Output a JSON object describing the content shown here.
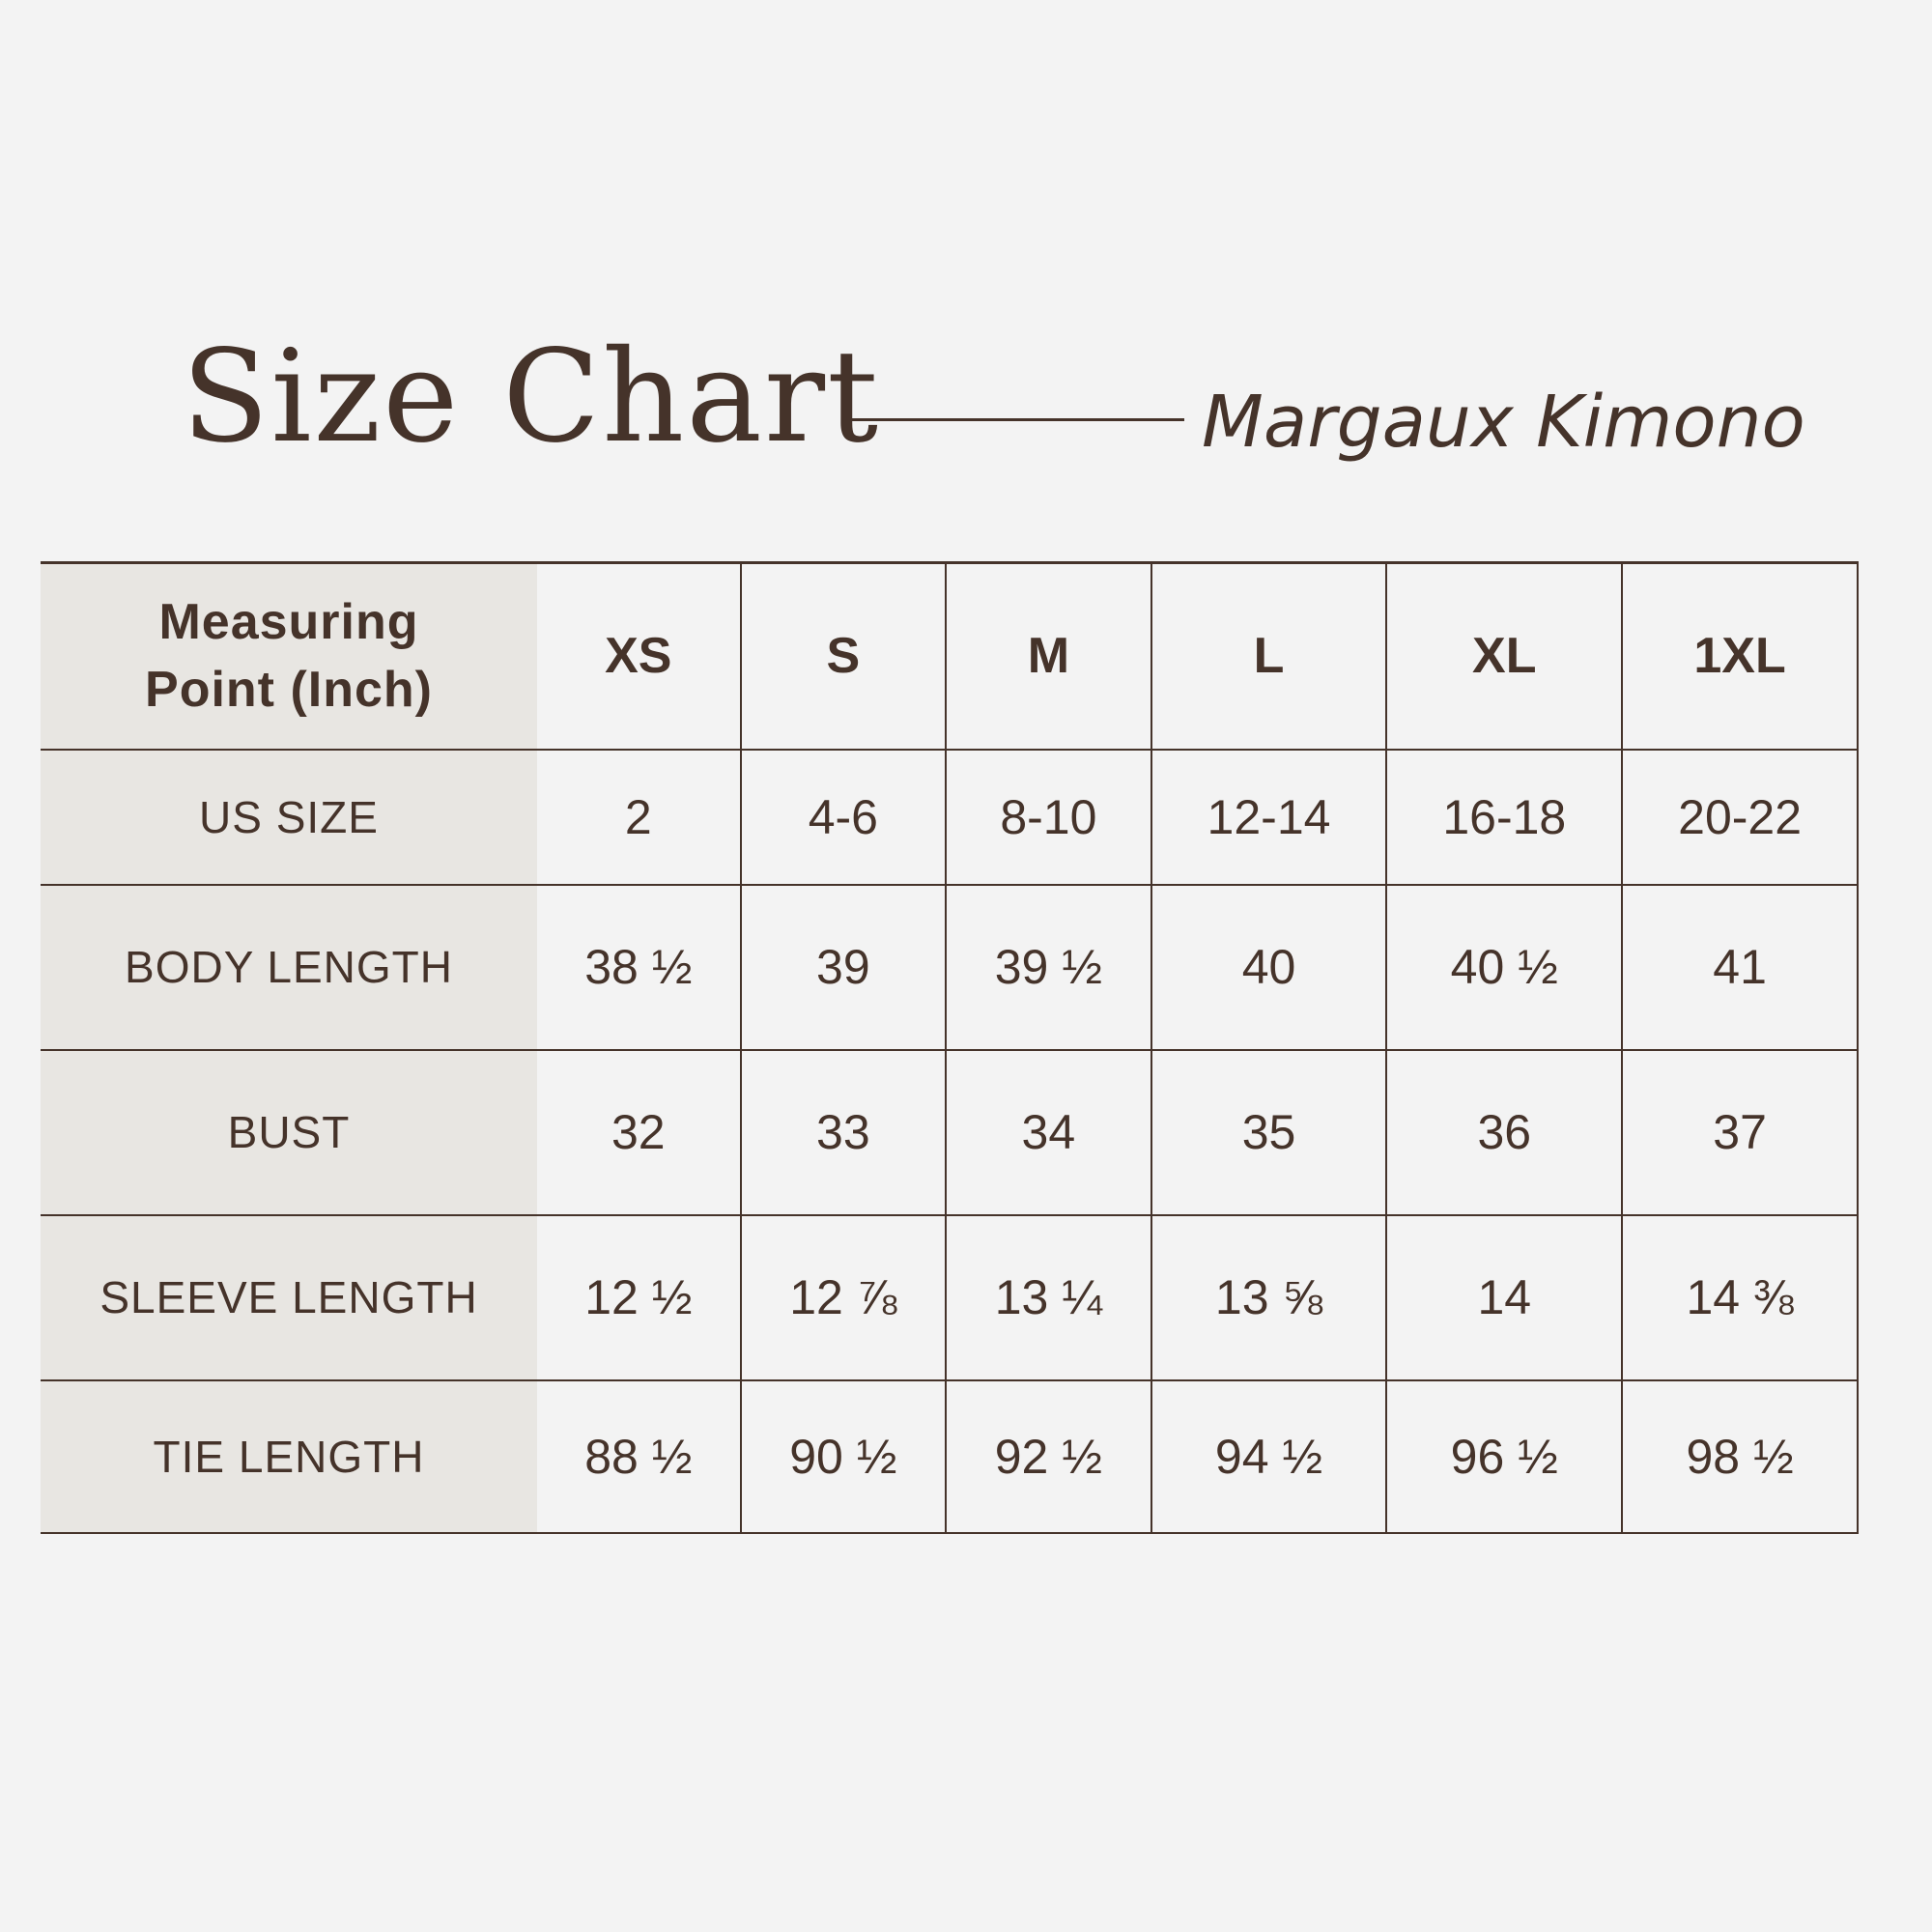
{
  "header": {
    "title": "Size Chart",
    "subtitle": "Margaux Kimono"
  },
  "colors": {
    "background": "#f3f3f3",
    "label_column_bg": "#e8e6e2",
    "text": "#45332a",
    "rule": "#45332a"
  },
  "table": {
    "corner_label": "Measuring Point (Inch)",
    "corner_line1": "Measuring",
    "corner_line2": "Point (Inch)",
    "sizes": [
      "XS",
      "S",
      "M",
      "L",
      "XL",
      "1XL"
    ],
    "rows": [
      {
        "label": "US SIZE",
        "values": [
          "2",
          "4-6",
          "8-10",
          "12-14",
          "16-18",
          "20-22"
        ]
      },
      {
        "label": "BODY LENGTH",
        "values": [
          "38 ½",
          "39",
          "39 ½",
          "40",
          "40 ½",
          "41"
        ]
      },
      {
        "label": "BUST",
        "values": [
          "32",
          "33",
          "34",
          "35",
          "36",
          "37"
        ]
      },
      {
        "label": "SLEEVE LENGTH",
        "values": [
          "12 ½",
          "12 ⅞",
          "13 ¼",
          "13 ⅝",
          "14",
          "14 ⅜"
        ]
      },
      {
        "label": "TIE LENGTH",
        "values": [
          "88 ½",
          "90 ½",
          "92 ½",
          "94 ½",
          "96 ½",
          "98 ½"
        ]
      }
    ]
  }
}
